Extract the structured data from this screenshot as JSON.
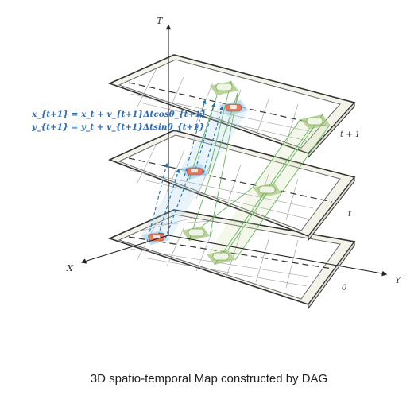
{
  "axes": {
    "vertical": "T",
    "left": "X",
    "right": "Y"
  },
  "layers": [
    {
      "label": "0"
    },
    {
      "label": "t"
    },
    {
      "label": "t + 1"
    }
  ],
  "equations": [
    "x_{t+1} = x_t + v_{t+1}Δtcosθ_{t+1}",
    "y_{t+1} = y_t + v_{t+1}Δtsinθ_{t+1}"
  ],
  "caption": "3D spatio-temporal Map constructed by DAG",
  "colors": {
    "road_fill": "#f3f3ea",
    "grid": "#9a9a9a",
    "lane": "#333333",
    "ego_zone": "#a9d4ee",
    "ego_arrow": "#1f6fb5",
    "neighbor_zone": "#a8c982",
    "link": "#63b35a",
    "ego_car": "#e8785a",
    "other_car": "#7faa55",
    "equation": "#2a6bb8"
  }
}
